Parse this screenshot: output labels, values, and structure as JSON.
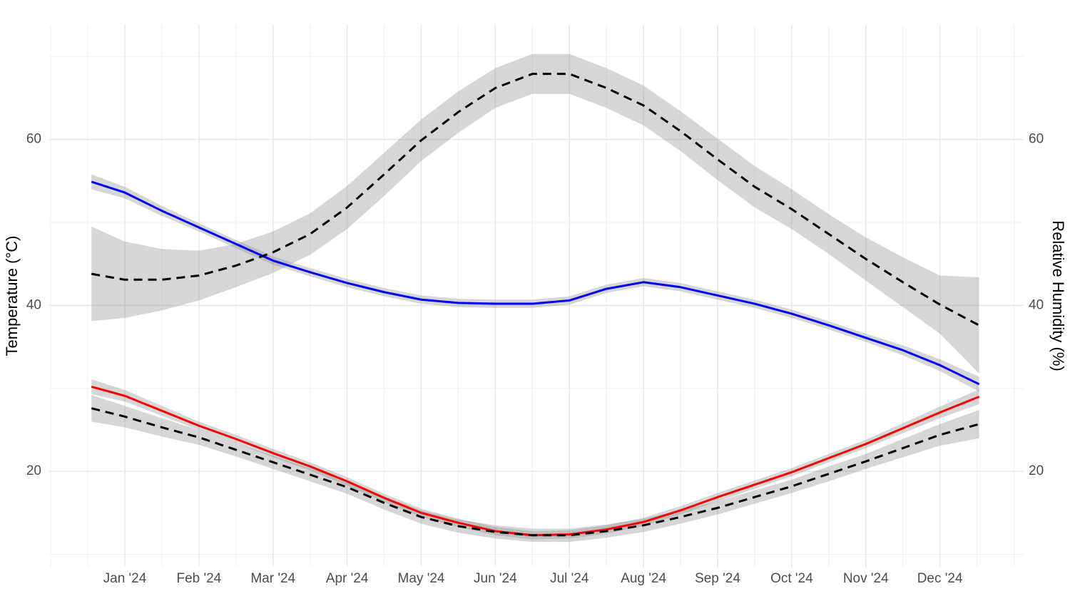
{
  "chart_data": {
    "type": "line",
    "y_label": "Temperature (°C)",
    "y2_label": "Relative Humidity (%)",
    "x": [
      0.55,
      1,
      1.5,
      2,
      2.5,
      3,
      3.5,
      4,
      4.5,
      5,
      5.5,
      6,
      6.5,
      7,
      7.5,
      8,
      8.5,
      9,
      9.5,
      10,
      10.5,
      11,
      11.5,
      12,
      12.53
    ],
    "xlim": [
      -0.03,
      13.13
    ],
    "xticks": [
      {
        "value": 1,
        "label": "Jan '24"
      },
      {
        "value": 2,
        "label": "Feb '24"
      },
      {
        "value": 3,
        "label": "Mar '24"
      },
      {
        "value": 4,
        "label": "Apr '24"
      },
      {
        "value": 5,
        "label": "May '24"
      },
      {
        "value": 6,
        "label": "Jun '24"
      },
      {
        "value": 7,
        "label": "Jul '24"
      },
      {
        "value": 8,
        "label": "Aug '24"
      },
      {
        "value": 9,
        "label": "Sep '24"
      },
      {
        "value": 10,
        "label": "Oct '24"
      },
      {
        "value": 11,
        "label": "Nov '24"
      },
      {
        "value": 12,
        "label": "Dec '24"
      }
    ],
    "xminor": [
      0,
      0.5,
      1.5,
      2.5,
      3.5,
      4.5,
      5.5,
      6.5,
      7.5,
      8.5,
      9.5,
      10.5,
      11.5,
      12.5,
      13
    ],
    "ylim": [
      8.5,
      73.8
    ],
    "yticks": [
      20,
      40,
      60
    ],
    "yminor": [
      10,
      30,
      50,
      70
    ],
    "y2lim": [
      8.5,
      73.8
    ],
    "y2ticks": [
      20,
      40,
      60
    ],
    "grid": true,
    "series": [
      {
        "color": "#0000ff",
        "dash": false,
        "axis": "y2",
        "values": [
          54.9,
          53.6,
          51.4,
          49.4,
          47.4,
          45.4,
          44.0,
          42.7,
          41.6,
          40.7,
          40.3,
          40.2,
          40.2,
          40.6,
          42.0,
          42.8,
          42.2,
          41.2,
          40.2,
          39.0,
          37.6,
          36.1,
          34.6,
          32.8,
          30.5
        ],
        "ci": [
          0.9,
          0.7,
          0.6,
          0.5,
          0.5,
          0.5,
          0.5,
          0.5,
          0.5,
          0.5,
          0.5,
          0.5,
          0.5,
          0.5,
          0.5,
          0.5,
          0.5,
          0.5,
          0.5,
          0.5,
          0.5,
          0.5,
          0.6,
          0.7,
          0.9
        ]
      },
      {
        "color": "#000000",
        "dash": true,
        "axis": "y2",
        "values": [
          43.8,
          43.1,
          43.1,
          43.6,
          44.8,
          46.4,
          48.6,
          51.8,
          55.8,
          59.9,
          63.3,
          66.2,
          67.9,
          67.9,
          66.2,
          64.1,
          61.0,
          57.6,
          54.3,
          51.6,
          48.6,
          45.6,
          42.8,
          40.1,
          37.6
        ],
        "ci": [
          5.7,
          4.6,
          3.7,
          3.0,
          2.6,
          2.5,
          2.5,
          2.6,
          2.6,
          2.5,
          2.5,
          2.4,
          2.4,
          2.4,
          2.4,
          2.4,
          2.4,
          2.5,
          2.5,
          2.4,
          2.4,
          2.6,
          3.0,
          3.5,
          5.8
        ]
      },
      {
        "color": "#ff0000",
        "dash": false,
        "values": [
          30.2,
          29.1,
          27.3,
          25.5,
          23.9,
          22.2,
          20.6,
          18.8,
          16.8,
          15.0,
          13.8,
          12.8,
          12.3,
          12.4,
          13.0,
          13.9,
          15.3,
          16.9,
          18.4,
          19.9,
          21.6,
          23.3,
          25.2,
          27.1,
          29.0
        ],
        "ci": [
          0.9,
          0.7,
          0.6,
          0.5,
          0.5,
          0.5,
          0.5,
          0.5,
          0.5,
          0.5,
          0.5,
          0.5,
          0.5,
          0.5,
          0.5,
          0.5,
          0.5,
          0.5,
          0.5,
          0.5,
          0.5,
          0.5,
          0.6,
          0.7,
          0.9
        ]
      },
      {
        "color": "#000000",
        "dash": true,
        "values": [
          27.6,
          26.6,
          25.3,
          24.1,
          22.6,
          21.1,
          19.6,
          18.1,
          16.2,
          14.5,
          13.4,
          12.7,
          12.3,
          12.3,
          12.8,
          13.5,
          14.5,
          15.6,
          16.9,
          18.2,
          19.7,
          21.2,
          22.8,
          24.4,
          25.7
        ],
        "ci": [
          1.6,
          1.3,
          1.1,
          0.9,
          0.8,
          0.8,
          0.8,
          0.8,
          0.8,
          0.8,
          0.8,
          0.8,
          0.8,
          0.8,
          0.8,
          0.8,
          0.8,
          0.8,
          0.8,
          0.8,
          0.9,
          0.9,
          1.1,
          1.3,
          1.7
        ]
      }
    ]
  }
}
